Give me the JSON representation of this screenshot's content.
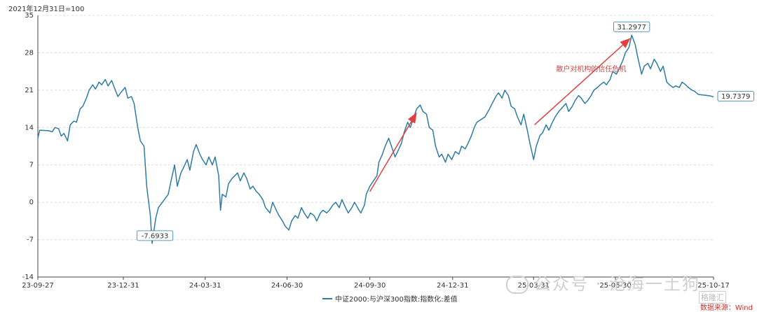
{
  "unit_note": "2021年12月31日=100",
  "legend_label": "中证2000:与沪深300指数:指数化:差值",
  "watermark_text": "公众号 · 沧海一土狗",
  "source_text": "数据来源：Wind",
  "logo_text": "格隆汇",
  "chart_data": {
    "type": "line",
    "title": "",
    "xlabel": "",
    "ylabel": "",
    "ylim": [
      -14,
      35
    ],
    "y_ticks": [
      -14,
      -7,
      0,
      7,
      14,
      21,
      28,
      35
    ],
    "x_tick_labels": [
      "23-09-27",
      "23-12-31",
      "24-03-31",
      "24-06-30",
      "24-09-30",
      "24-12-31",
      "25-03-31",
      "25-06-30",
      "25-10-17"
    ],
    "x_tick_dates": [
      "2023-09-27",
      "2023-12-31",
      "2024-03-31",
      "2024-06-30",
      "2024-09-30",
      "2024-12-31",
      "2025-03-31",
      "2025-06-30",
      "2025-10-17"
    ],
    "grid": "horizontal dashed",
    "legend": "bottom-center",
    "line_color": "#2e7ca3",
    "series": [
      {
        "name": "中证2000:与沪深300指数:指数化:差值",
        "points": [
          [
            "2023-09-27",
            12.0
          ],
          [
            "2023-09-29",
            13.5
          ],
          [
            "2023-10-09",
            13.4
          ],
          [
            "2023-10-13",
            13.2
          ],
          [
            "2023-10-16",
            14.0
          ],
          [
            "2023-10-20",
            13.8
          ],
          [
            "2023-10-23",
            12.4
          ],
          [
            "2023-10-26",
            12.9
          ],
          [
            "2023-10-30",
            11.5
          ],
          [
            "2023-11-02",
            14.5
          ],
          [
            "2023-11-06",
            15.2
          ],
          [
            "2023-11-09",
            15.0
          ],
          [
            "2023-11-13",
            17.5
          ],
          [
            "2023-11-16",
            18.0
          ],
          [
            "2023-11-20",
            19.5
          ],
          [
            "2023-11-23",
            21.0
          ],
          [
            "2023-11-27",
            22.0
          ],
          [
            "2023-11-30",
            21.2
          ],
          [
            "2023-12-04",
            22.5
          ],
          [
            "2023-12-07",
            22.0
          ],
          [
            "2023-12-11",
            23.0
          ],
          [
            "2023-12-14",
            21.8
          ],
          [
            "2023-12-18",
            22.8
          ],
          [
            "2023-12-21",
            21.5
          ],
          [
            "2023-12-25",
            19.8
          ],
          [
            "2023-12-28",
            20.5
          ],
          [
            "2024-01-02",
            21.5
          ],
          [
            "2024-01-05",
            19.5
          ],
          [
            "2024-01-09",
            19.8
          ],
          [
            "2024-01-12",
            18.5
          ],
          [
            "2024-01-16",
            14.0
          ],
          [
            "2024-01-19",
            11.5
          ],
          [
            "2024-01-23",
            10.5
          ],
          [
            "2024-01-26",
            3.0
          ],
          [
            "2024-01-30",
            -2.5
          ],
          [
            "2024-02-01",
            -7.7
          ],
          [
            "2024-02-05",
            -3.0
          ],
          [
            "2024-02-08",
            -1.0
          ],
          [
            "2024-02-19",
            1.5
          ],
          [
            "2024-02-22",
            4.0
          ],
          [
            "2024-02-26",
            7.0
          ],
          [
            "2024-02-29",
            3.0
          ],
          [
            "2024-03-04",
            5.5
          ],
          [
            "2024-03-07",
            6.5
          ],
          [
            "2024-03-11",
            8.0
          ],
          [
            "2024-03-14",
            6.0
          ],
          [
            "2024-03-18",
            9.5
          ],
          [
            "2024-03-21",
            10.8
          ],
          [
            "2024-03-25",
            9.0
          ],
          [
            "2024-03-28",
            8.0
          ],
          [
            "2024-04-01",
            7.0
          ],
          [
            "2024-04-04",
            8.5
          ],
          [
            "2024-04-08",
            7.0
          ],
          [
            "2024-04-11",
            8.5
          ],
          [
            "2024-04-15",
            5.0
          ],
          [
            "2024-04-17",
            -1.5
          ],
          [
            "2024-04-19",
            1.5
          ],
          [
            "2024-04-23",
            1.0
          ],
          [
            "2024-04-26",
            3.5
          ],
          [
            "2024-04-30",
            4.5
          ],
          [
            "2024-05-06",
            5.5
          ],
          [
            "2024-05-09",
            4.0
          ],
          [
            "2024-05-13",
            5.5
          ],
          [
            "2024-05-16",
            4.5
          ],
          [
            "2024-05-20",
            2.5
          ],
          [
            "2024-05-23",
            3.0
          ],
          [
            "2024-05-27",
            2.0
          ],
          [
            "2024-05-30",
            1.5
          ],
          [
            "2024-06-03",
            0.5
          ],
          [
            "2024-06-06",
            -1.0
          ],
          [
            "2024-06-11",
            -2.0
          ],
          [
            "2024-06-14",
            0.0
          ],
          [
            "2024-06-18",
            -1.5
          ],
          [
            "2024-06-21",
            -2.5
          ],
          [
            "2024-06-25",
            -3.5
          ],
          [
            "2024-06-28",
            -4.5
          ],
          [
            "2024-07-02",
            -5.2
          ],
          [
            "2024-07-05",
            -3.5
          ],
          [
            "2024-07-09",
            -2.5
          ],
          [
            "2024-07-12",
            -3.0
          ],
          [
            "2024-07-16",
            -1.0
          ],
          [
            "2024-07-19",
            -2.0
          ],
          [
            "2024-07-23",
            -3.0
          ],
          [
            "2024-07-26",
            -2.0
          ],
          [
            "2024-07-30",
            -2.5
          ],
          [
            "2024-08-02",
            -3.5
          ],
          [
            "2024-08-06",
            -2.0
          ],
          [
            "2024-08-09",
            -1.5
          ],
          [
            "2024-08-13",
            -2.0
          ],
          [
            "2024-08-16",
            -1.5
          ],
          [
            "2024-08-20",
            -0.5
          ],
          [
            "2024-08-23",
            0.0
          ],
          [
            "2024-08-27",
            -1.0
          ],
          [
            "2024-08-30",
            0.5
          ],
          [
            "2024-09-03",
            -1.0
          ],
          [
            "2024-09-06",
            -2.0
          ],
          [
            "2024-09-10",
            -1.0
          ],
          [
            "2024-09-13",
            0.0
          ],
          [
            "2024-09-18",
            -1.5
          ],
          [
            "2024-09-20",
            -2.0
          ],
          [
            "2024-09-24",
            -0.5
          ],
          [
            "2024-09-26",
            1.5
          ],
          [
            "2024-09-30",
            3.0
          ],
          [
            "2024-10-08",
            5.0
          ],
          [
            "2024-10-10",
            7.5
          ],
          [
            "2024-10-14",
            9.0
          ],
          [
            "2024-10-17",
            10.5
          ],
          [
            "2024-10-21",
            12.0
          ],
          [
            "2024-10-24",
            10.5
          ],
          [
            "2024-10-28",
            8.5
          ],
          [
            "2024-10-31",
            9.5
          ],
          [
            "2024-11-04",
            11.0
          ],
          [
            "2024-11-07",
            13.0
          ],
          [
            "2024-11-11",
            15.0
          ],
          [
            "2024-11-14",
            14.0
          ],
          [
            "2024-11-18",
            16.0
          ],
          [
            "2024-11-21",
            17.5
          ],
          [
            "2024-11-25",
            18.2
          ],
          [
            "2024-11-28",
            17.0
          ],
          [
            "2024-12-02",
            16.5
          ],
          [
            "2024-12-05",
            14.0
          ],
          [
            "2024-12-09",
            13.5
          ],
          [
            "2024-12-12",
            10.5
          ],
          [
            "2024-12-16",
            8.5
          ],
          [
            "2024-12-19",
            9.0
          ],
          [
            "2024-12-23",
            7.5
          ],
          [
            "2024-12-26",
            9.0
          ],
          [
            "2024-12-30",
            8.0
          ],
          [
            "2025-01-03",
            9.5
          ],
          [
            "2025-01-07",
            9.0
          ],
          [
            "2025-01-10",
            10.5
          ],
          [
            "2025-01-14",
            10.0
          ],
          [
            "2025-01-17",
            11.0
          ],
          [
            "2025-01-21",
            12.5
          ],
          [
            "2025-01-24",
            14.0
          ],
          [
            "2025-01-27",
            15.0
          ],
          [
            "2025-02-05",
            16.0
          ],
          [
            "2025-02-10",
            17.5
          ],
          [
            "2025-02-13",
            18.5
          ],
          [
            "2025-02-17",
            19.8
          ],
          [
            "2025-02-20",
            20.5
          ],
          [
            "2025-02-24",
            19.5
          ],
          [
            "2025-02-27",
            21.0
          ],
          [
            "2025-03-03",
            20.0
          ],
          [
            "2025-03-06",
            18.0
          ],
          [
            "2025-03-10",
            17.5
          ],
          [
            "2025-03-13",
            16.0
          ],
          [
            "2025-03-17",
            14.5
          ],
          [
            "2025-03-20",
            16.5
          ],
          [
            "2025-03-24",
            13.5
          ],
          [
            "2025-03-27",
            11.0
          ],
          [
            "2025-03-31",
            8.0
          ],
          [
            "2025-04-03",
            10.5
          ],
          [
            "2025-04-07",
            12.5
          ],
          [
            "2025-04-10",
            13.0
          ],
          [
            "2025-04-14",
            14.5
          ],
          [
            "2025-04-17",
            13.5
          ],
          [
            "2025-04-21",
            15.0
          ],
          [
            "2025-04-24",
            16.0
          ],
          [
            "2025-04-28",
            17.0
          ],
          [
            "2025-05-06",
            18.5
          ],
          [
            "2025-05-09",
            17.0
          ],
          [
            "2025-05-13",
            18.0
          ],
          [
            "2025-05-16",
            19.0
          ],
          [
            "2025-05-20",
            20.0
          ],
          [
            "2025-05-23",
            19.5
          ],
          [
            "2025-05-27",
            18.5
          ],
          [
            "2025-05-30",
            19.0
          ],
          [
            "2025-06-03",
            20.0
          ],
          [
            "2025-06-06",
            21.0
          ],
          [
            "2025-06-10",
            21.5
          ],
          [
            "2025-06-13",
            22.0
          ],
          [
            "2025-06-17",
            22.5
          ],
          [
            "2025-06-20",
            22.0
          ],
          [
            "2025-06-24",
            23.0
          ],
          [
            "2025-06-27",
            24.5
          ],
          [
            "2025-07-01",
            24.0
          ],
          [
            "2025-07-04",
            25.0
          ],
          [
            "2025-07-08",
            26.5
          ],
          [
            "2025-07-11",
            28.0
          ],
          [
            "2025-07-15",
            29.0
          ],
          [
            "2025-07-18",
            31.2977
          ],
          [
            "2025-07-22",
            29.5
          ],
          [
            "2025-07-25",
            27.0
          ],
          [
            "2025-07-29",
            24.0
          ],
          [
            "2025-08-01",
            25.5
          ],
          [
            "2025-08-05",
            26.0
          ],
          [
            "2025-08-08",
            25.0
          ],
          [
            "2025-08-12",
            26.8
          ],
          [
            "2025-08-15",
            26.0
          ],
          [
            "2025-08-19",
            24.5
          ],
          [
            "2025-08-22",
            25.5
          ],
          [
            "2025-08-26",
            22.5
          ],
          [
            "2025-08-29",
            22.0
          ],
          [
            "2025-09-02",
            21.5
          ],
          [
            "2025-09-05",
            21.8
          ],
          [
            "2025-09-09",
            21.5
          ],
          [
            "2025-09-12",
            22.5
          ],
          [
            "2025-09-16",
            22.0
          ],
          [
            "2025-09-19",
            21.5
          ],
          [
            "2025-09-23",
            21.0
          ],
          [
            "2025-09-26",
            20.8
          ],
          [
            "2025-09-30",
            20.2
          ],
          [
            "2025-10-10",
            20.0
          ],
          [
            "2025-10-14",
            19.9
          ],
          [
            "2025-10-17",
            19.7379
          ]
        ]
      }
    ],
    "annotations": {
      "callouts": [
        {
          "date": "2024-02-01",
          "value": -7.6933,
          "label": "-7.6933"
        },
        {
          "date": "2025-07-18",
          "value": 31.2977,
          "label": "31.2977"
        },
        {
          "date": "2025-10-17",
          "value": 19.7379,
          "label": "19.7379"
        }
      ],
      "arrows": [
        {
          "from_date": "2024-09-30",
          "from_value": 2.0,
          "to_date": "2024-11-20",
          "to_value": 16.5
        },
        {
          "from_date": "2025-04-01",
          "from_value": 14.5,
          "to_date": "2025-07-15",
          "to_value": 30.5
        }
      ],
      "texts": [
        {
          "text": "散户对机构的信任危机",
          "date": "2025-04-25",
          "value": 24.5
        }
      ],
      "arrow_color": "#e04040"
    }
  }
}
